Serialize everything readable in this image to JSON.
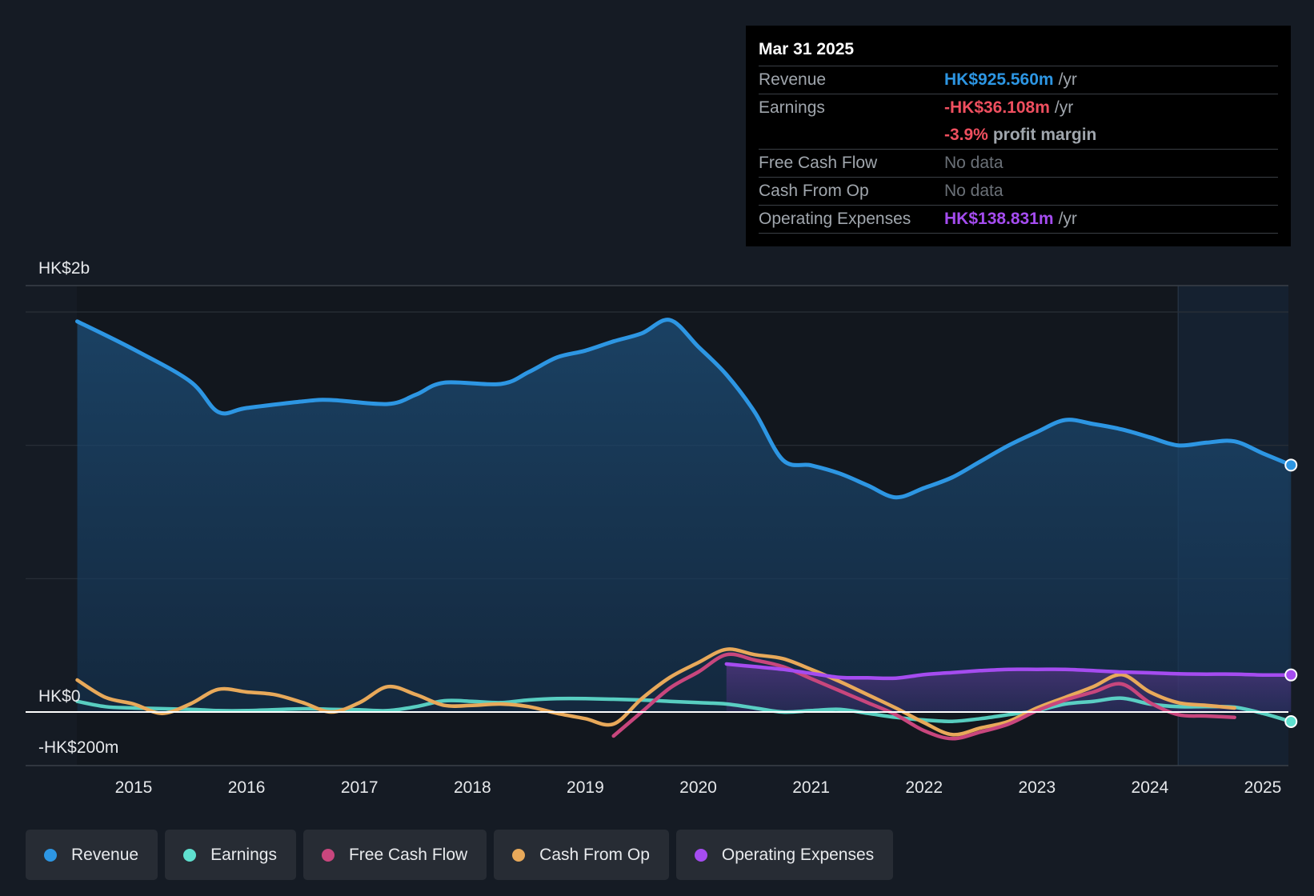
{
  "colors": {
    "revenue": "#2d96e3",
    "earnings": "#5fe0cf",
    "fcf": "#c8467d",
    "cfo": "#e8a95a",
    "opex": "#a54cf0",
    "negative": "#ef4f5f"
  },
  "tooltip": {
    "date": "Mar 31 2025",
    "rows": {
      "revenue": {
        "label": "Revenue",
        "value": "HK$925.560m",
        "unit": "/yr"
      },
      "earnings": {
        "label": "Earnings",
        "value": "-HK$36.108m",
        "unit": "/yr"
      },
      "margin": {
        "value": "-3.9%",
        "unit": "profit margin"
      },
      "fcf": {
        "label": "Free Cash Flow",
        "value": "No data"
      },
      "cfo": {
        "label": "Cash From Op",
        "value": "No data"
      },
      "opex": {
        "label": "Operating Expenses",
        "value": "HK$138.831m",
        "unit": "/yr"
      }
    }
  },
  "legend": [
    {
      "name": "Revenue",
      "color": "#2d96e3"
    },
    {
      "name": "Earnings",
      "color": "#5fe0cf"
    },
    {
      "name": "Free Cash Flow",
      "color": "#c8467d"
    },
    {
      "name": "Cash From Op",
      "color": "#e8a95a"
    },
    {
      "name": "Operating Expenses",
      "color": "#a54cf0"
    }
  ],
  "chart_data": {
    "type": "line",
    "title": "",
    "xlabel": "",
    "ylabel": "",
    "x_range": [
      2014.0,
      2025.25
    ],
    "ylim": [
      -200,
      1600
    ],
    "y_tick_labels": [
      {
        "value": 1600,
        "label": "HK$2b"
      },
      {
        "value": 0,
        "label": "HK$0"
      },
      {
        "value": -200,
        "label": "-HK$200m"
      }
    ],
    "x_tick_labels": [
      "2015",
      "2016",
      "2017",
      "2018",
      "2019",
      "2020",
      "2021",
      "2022",
      "2023",
      "2024",
      "2025"
    ],
    "x_ticks": [
      2015,
      2016,
      2017,
      2018,
      2019,
      2020,
      2021,
      2022,
      2023,
      2024,
      2025
    ],
    "forecast_start": 2024.25,
    "series": [
      {
        "name": "Revenue",
        "key": "revenue",
        "area": true,
        "points": [
          [
            2014.5,
            1465
          ],
          [
            2015.0,
            1360
          ],
          [
            2015.5,
            1240
          ],
          [
            2015.75,
            1125
          ],
          [
            2016.0,
            1140
          ],
          [
            2016.5,
            1165
          ],
          [
            2016.75,
            1170
          ],
          [
            2017.25,
            1155
          ],
          [
            2017.5,
            1190
          ],
          [
            2017.75,
            1235
          ],
          [
            2018.25,
            1230
          ],
          [
            2018.5,
            1275
          ],
          [
            2018.75,
            1330
          ],
          [
            2019.0,
            1355
          ],
          [
            2019.25,
            1390
          ],
          [
            2019.5,
            1420
          ],
          [
            2019.75,
            1470
          ],
          [
            2020.0,
            1370
          ],
          [
            2020.25,
            1265
          ],
          [
            2020.5,
            1125
          ],
          [
            2020.75,
            945
          ],
          [
            2021.0,
            925
          ],
          [
            2021.25,
            895
          ],
          [
            2021.5,
            850
          ],
          [
            2021.75,
            805
          ],
          [
            2022.0,
            840
          ],
          [
            2022.25,
            880
          ],
          [
            2022.5,
            940
          ],
          [
            2022.75,
            1000
          ],
          [
            2023.0,
            1050
          ],
          [
            2023.25,
            1095
          ],
          [
            2023.5,
            1080
          ],
          [
            2023.75,
            1060
          ],
          [
            2024.0,
            1030
          ],
          [
            2024.25,
            1000
          ],
          [
            2024.5,
            1010
          ],
          [
            2024.75,
            1015
          ],
          [
            2025.0,
            970
          ],
          [
            2025.25,
            926
          ]
        ]
      },
      {
        "name": "Earnings",
        "key": "earnings",
        "area": false,
        "points": [
          [
            2014.5,
            40
          ],
          [
            2014.75,
            20
          ],
          [
            2015.0,
            15
          ],
          [
            2015.5,
            10
          ],
          [
            2015.75,
            5
          ],
          [
            2016.0,
            5
          ],
          [
            2016.5,
            12
          ],
          [
            2016.75,
            10
          ],
          [
            2017.0,
            8
          ],
          [
            2017.25,
            5
          ],
          [
            2017.5,
            20
          ],
          [
            2017.75,
            42
          ],
          [
            2018.0,
            40
          ],
          [
            2018.25,
            35
          ],
          [
            2018.5,
            45
          ],
          [
            2018.75,
            50
          ],
          [
            2019.0,
            50
          ],
          [
            2019.5,
            45
          ],
          [
            2019.75,
            40
          ],
          [
            2020.0,
            35
          ],
          [
            2020.25,
            30
          ],
          [
            2020.5,
            15
          ],
          [
            2020.75,
            0
          ],
          [
            2021.0,
            5
          ],
          [
            2021.25,
            10
          ],
          [
            2021.5,
            -5
          ],
          [
            2021.75,
            -20
          ],
          [
            2022.0,
            -30
          ],
          [
            2022.25,
            -35
          ],
          [
            2022.5,
            -25
          ],
          [
            2022.75,
            -10
          ],
          [
            2023.0,
            5
          ],
          [
            2023.25,
            30
          ],
          [
            2023.5,
            40
          ],
          [
            2023.75,
            52
          ],
          [
            2024.0,
            30
          ],
          [
            2024.25,
            20
          ],
          [
            2024.5,
            20
          ],
          [
            2024.75,
            18
          ],
          [
            2025.0,
            -5
          ],
          [
            2025.25,
            -36
          ]
        ]
      },
      {
        "name": "Free Cash Flow",
        "key": "fcf",
        "area": false,
        "points": [
          [
            2019.25,
            -90
          ],
          [
            2019.5,
            0
          ],
          [
            2019.75,
            90
          ],
          [
            2020.0,
            150
          ],
          [
            2020.25,
            215
          ],
          [
            2020.5,
            195
          ],
          [
            2020.75,
            170
          ],
          [
            2021.0,
            125
          ],
          [
            2021.25,
            80
          ],
          [
            2021.5,
            35
          ],
          [
            2021.75,
            -10
          ],
          [
            2022.0,
            -70
          ],
          [
            2022.25,
            -100
          ],
          [
            2022.5,
            -75
          ],
          [
            2022.75,
            -45
          ],
          [
            2023.0,
            5
          ],
          [
            2023.25,
            45
          ],
          [
            2023.5,
            75
          ],
          [
            2023.75,
            105
          ],
          [
            2024.0,
            35
          ],
          [
            2024.25,
            -10
          ],
          [
            2024.5,
            -15
          ],
          [
            2024.75,
            -20
          ]
        ]
      },
      {
        "name": "Cash From Op",
        "key": "cfo",
        "area": false,
        "points": [
          [
            2014.5,
            120
          ],
          [
            2014.75,
            55
          ],
          [
            2015.0,
            30
          ],
          [
            2015.25,
            -5
          ],
          [
            2015.5,
            30
          ],
          [
            2015.75,
            85
          ],
          [
            2016.0,
            75
          ],
          [
            2016.25,
            65
          ],
          [
            2016.5,
            35
          ],
          [
            2016.75,
            0
          ],
          [
            2017.0,
            35
          ],
          [
            2017.25,
            95
          ],
          [
            2017.5,
            65
          ],
          [
            2017.75,
            25
          ],
          [
            2018.0,
            25
          ],
          [
            2018.25,
            30
          ],
          [
            2018.5,
            20
          ],
          [
            2018.75,
            -5
          ],
          [
            2019.0,
            -25
          ],
          [
            2019.25,
            -45
          ],
          [
            2019.5,
            50
          ],
          [
            2019.75,
            130
          ],
          [
            2020.0,
            185
          ],
          [
            2020.25,
            235
          ],
          [
            2020.5,
            215
          ],
          [
            2020.75,
            200
          ],
          [
            2021.0,
            160
          ],
          [
            2021.25,
            115
          ],
          [
            2021.5,
            65
          ],
          [
            2021.75,
            15
          ],
          [
            2022.0,
            -40
          ],
          [
            2022.25,
            -85
          ],
          [
            2022.5,
            -60
          ],
          [
            2022.75,
            -35
          ],
          [
            2023.0,
            15
          ],
          [
            2023.25,
            55
          ],
          [
            2023.5,
            95
          ],
          [
            2023.75,
            140
          ],
          [
            2024.0,
            75
          ],
          [
            2024.25,
            35
          ],
          [
            2024.5,
            25
          ],
          [
            2024.75,
            15
          ]
        ]
      },
      {
        "name": "Operating Expenses",
        "key": "opex",
        "area": true,
        "points": [
          [
            2020.25,
            180
          ],
          [
            2020.5,
            170
          ],
          [
            2020.75,
            160
          ],
          [
            2021.0,
            145
          ],
          [
            2021.25,
            130
          ],
          [
            2021.5,
            128
          ],
          [
            2021.75,
            127
          ],
          [
            2022.0,
            140
          ],
          [
            2022.25,
            148
          ],
          [
            2022.5,
            155
          ],
          [
            2022.75,
            160
          ],
          [
            2023.0,
            160
          ],
          [
            2023.25,
            160
          ],
          [
            2023.5,
            155
          ],
          [
            2023.75,
            150
          ],
          [
            2024.0,
            147
          ],
          [
            2024.25,
            143
          ],
          [
            2024.5,
            142
          ],
          [
            2024.75,
            142
          ],
          [
            2025.0,
            139
          ],
          [
            2025.25,
            139
          ]
        ]
      }
    ]
  }
}
